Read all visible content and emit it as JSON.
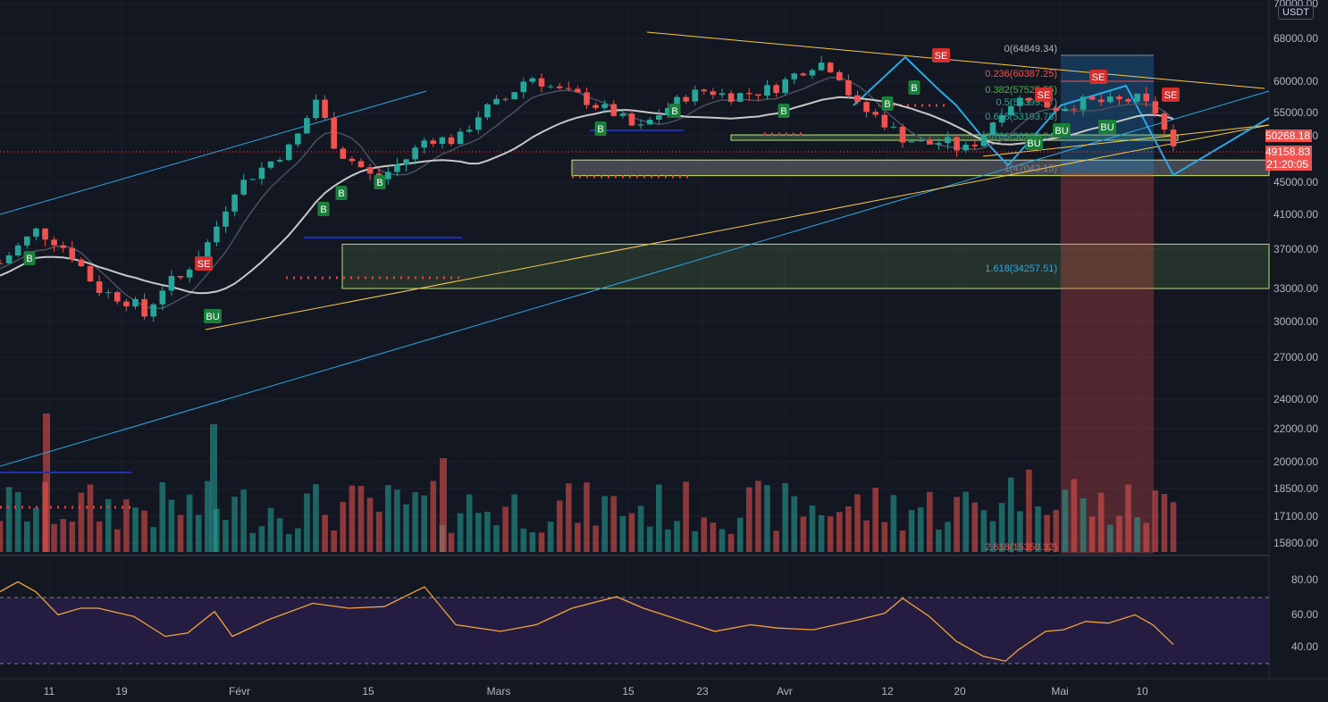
{
  "quote_currency": "USDT",
  "price_axis": {
    "ticks": [
      "70000.00",
      "68000.00",
      "60000.00",
      "55000.00",
      "50000.00",
      "45000.00",
      "41000.00",
      "37000.00",
      "33000.00",
      "30000.00",
      "27000.00",
      "24000.00",
      "22000.00",
      "20000.00",
      "18500.00",
      "17100.00",
      "15800.00"
    ]
  },
  "rsi_axis": {
    "ticks": [
      "80.00",
      "60.00",
      "40.00"
    ]
  },
  "time_axis": {
    "labels": [
      "11",
      "19",
      "Févr",
      "15",
      "Mars",
      "15",
      "23",
      "Avr",
      "12",
      "20",
      "Mai",
      "10"
    ]
  },
  "price_tags": {
    "high": "50268.18",
    "current": "49158.83",
    "countdown": "21:20:05"
  },
  "fib_labels": {
    "level_0": "0(64849.34)",
    "level_0236": "0.236(60387.25)",
    "level_0382": "0.382(57525.55)",
    "level_05": "0.5(55399.77)",
    "level_0618": "0.618(53193.78)",
    "level_0786": "0.786(50263.24)",
    "level_1": "1(47042.15)",
    "level_1618": "1.618(34257.51)",
    "level_2618": "2.618(15350.32)"
  },
  "signal_labels": {
    "buy": "B",
    "bull": "BU",
    "sell": "SE"
  },
  "colors": {
    "background": "#131722",
    "up": "#26a69a",
    "down": "#ef5350",
    "ma": "#c8c8c8",
    "trendline": "#f7c948",
    "channel": "#2aa8e6",
    "rsi": "#f2a33a",
    "rsi_band": "#2a1f4a",
    "current_price": "#ef5350",
    "buy_label": "#1b7f3b",
    "sell_label": "#d32f2f"
  },
  "chart_data": {
    "type": "candlestick",
    "title": "",
    "y_scale": "log",
    "ylim": [
      15000,
      70000
    ],
    "x_range_days": "2021-01-05 to 2021-05-20",
    "series": [
      {
        "name": "price",
        "close_first": 35500,
        "close_last": 49158.83
      },
      {
        "name": "RSI",
        "range": [
          0,
          100
        ],
        "upper_band": 70,
        "lower_band": 30,
        "last": 40
      }
    ],
    "key_levels": [
      64849.34,
      60387.25,
      57525.55,
      55399.77,
      53193.78,
      50263.24,
      47042.15,
      34257.51,
      15350.32
    ],
    "zones": [
      {
        "from": 45700,
        "to": 47800
      },
      {
        "from": 33000,
        "to": 37500
      }
    ]
  }
}
